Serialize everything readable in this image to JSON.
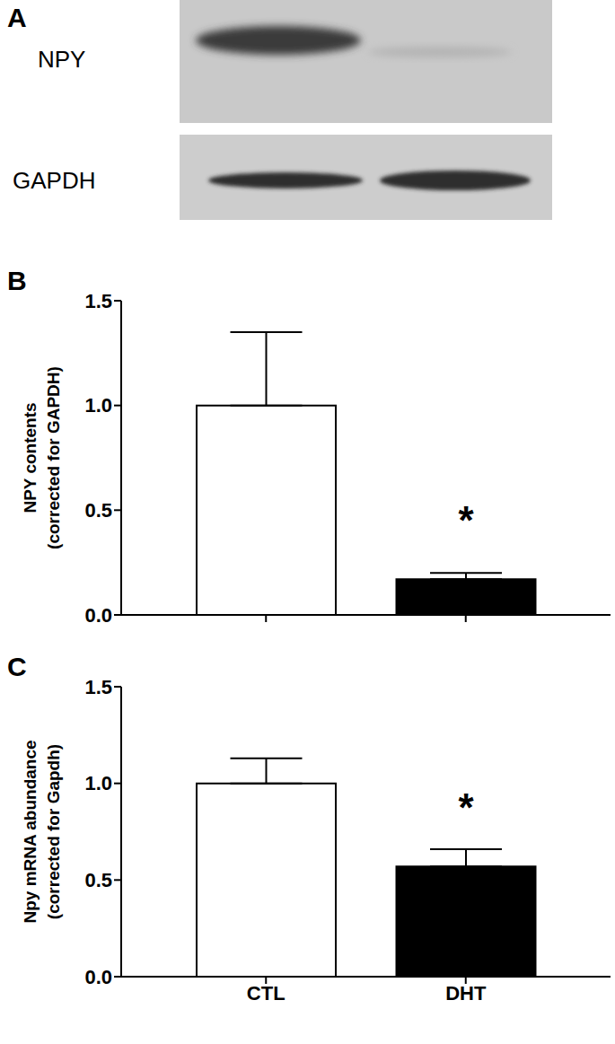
{
  "blot": {
    "label": "A",
    "rows": [
      "NPY",
      "GAPDH"
    ]
  },
  "chart_data": [
    {
      "type": "bar",
      "title": "B",
      "y_label": "NPY contents\n(corrected for GAPDH)",
      "categories": [
        null,
        null
      ],
      "values": [
        1.0,
        0.17
      ],
      "errors": [
        0.35,
        0.03
      ],
      "colors": [
        "#ffffff",
        "#000000"
      ],
      "ylim": [
        0,
        1.5
      ],
      "yticks": [
        {
          "value": 0,
          "label": "0.0"
        },
        {
          "value": 0.5,
          "label": "0.5"
        },
        {
          "value": 1,
          "label": "1.0"
        },
        {
          "value": 1.5,
          "label": "1.5"
        }
      ],
      "annotations": [
        {
          "text": "*",
          "at": 1
        }
      ],
      "grid": false
    },
    {
      "type": "bar",
      "title": "C",
      "y_label": "Npy mRNA abundance\n(corrected for Gapdh)",
      "categories": [
        "CTL",
        "DHT"
      ],
      "values": [
        1.0,
        0.57
      ],
      "errors": [
        0.13,
        0.09
      ],
      "colors": [
        "#ffffff",
        "#000000"
      ],
      "ylim": [
        0,
        1.5
      ],
      "yticks": [
        {
          "value": 0,
          "label": "0.0"
        },
        {
          "value": 0.5,
          "label": "0.5"
        },
        {
          "value": 1,
          "label": "1.0"
        },
        {
          "value": 1.5,
          "label": "1.5"
        }
      ],
      "annotations": [
        {
          "text": "*",
          "at": 1
        }
      ],
      "grid": false
    }
  ]
}
